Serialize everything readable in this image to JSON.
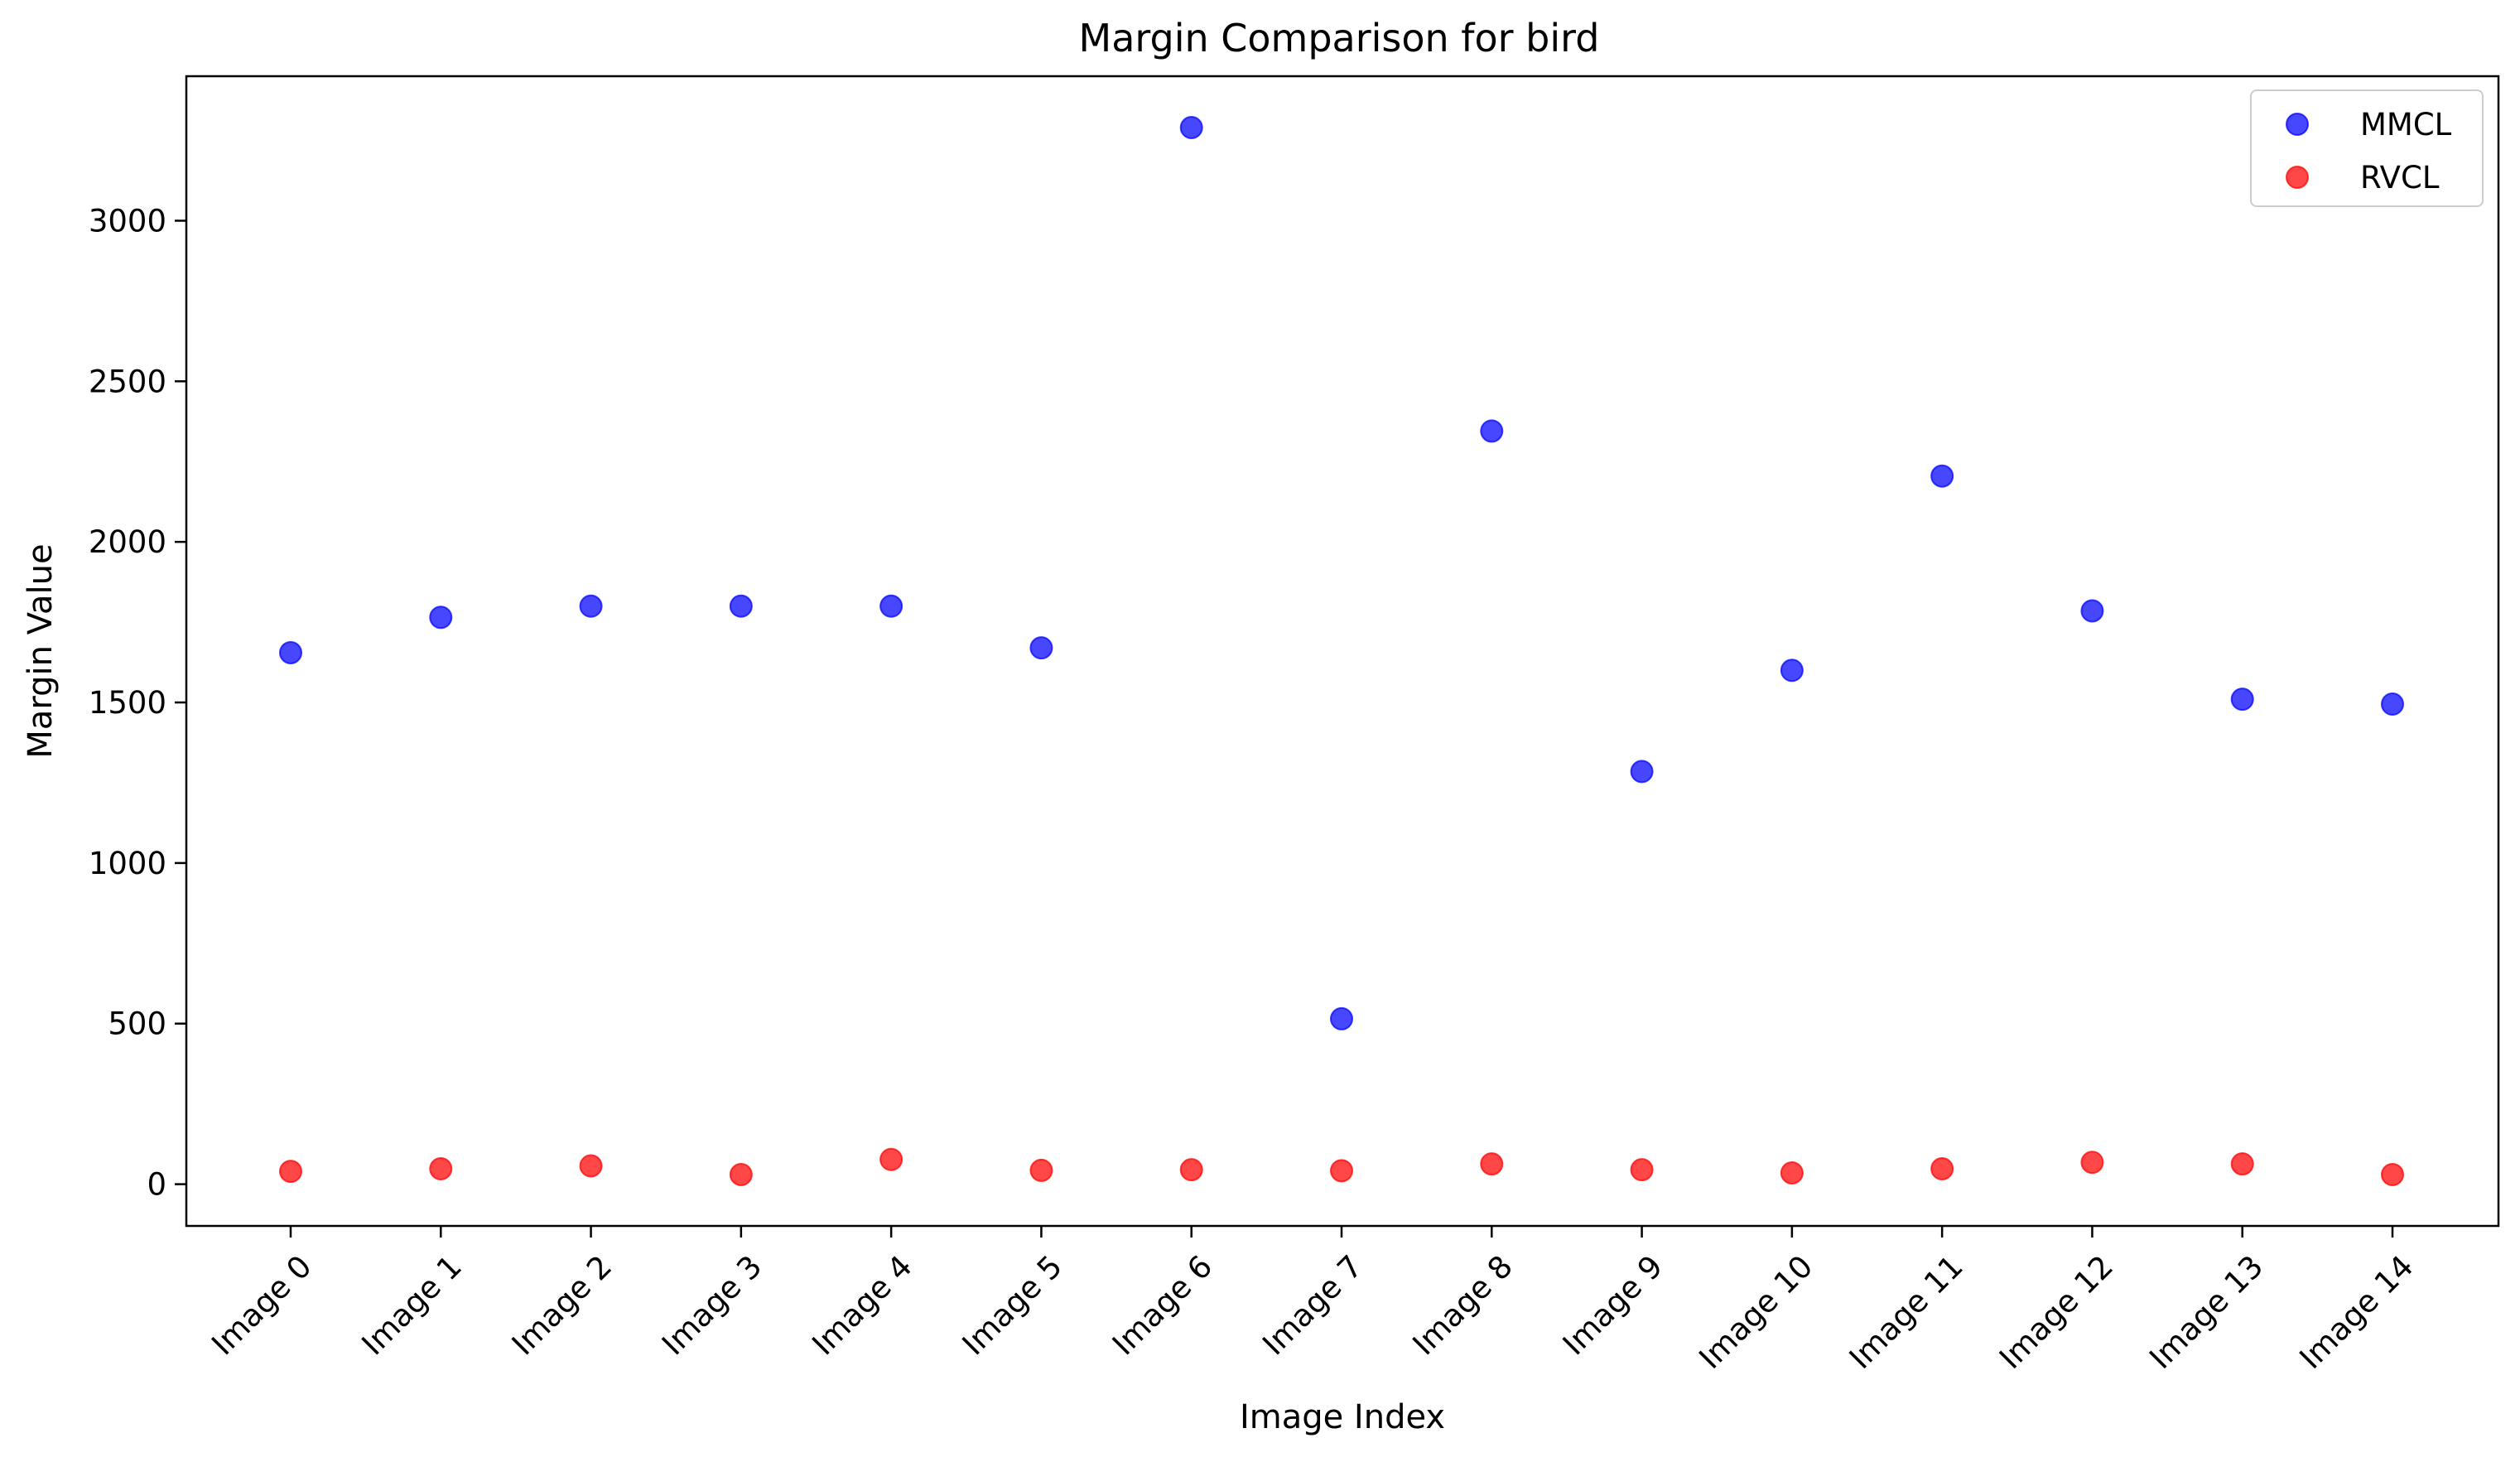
{
  "chart_data": {
    "type": "scatter",
    "title": "Margin Comparison for bird",
    "xlabel": "Image Index",
    "ylabel": "Margin Value",
    "categories": [
      "Image 0",
      "Image 1",
      "Image 2",
      "Image 3",
      "Image 4",
      "Image 5",
      "Image 6",
      "Image 7",
      "Image 8",
      "Image 9",
      "Image 10",
      "Image 11",
      "Image 12",
      "Image 13",
      "Image 14"
    ],
    "yticks": [
      0,
      500,
      1000,
      1500,
      2000,
      2500,
      3000
    ],
    "ylim": [
      -130,
      3450
    ],
    "grid": false,
    "legend_position": "top-right",
    "series": [
      {
        "name": "MMCL",
        "color": "#0000ff",
        "values": [
          1655,
          1765,
          1800,
          1800,
          1800,
          1670,
          3290,
          515,
          2345,
          1285,
          1600,
          2205,
          1785,
          1510,
          1495
        ]
      },
      {
        "name": "RVCL",
        "color": "#ff0000",
        "values": [
          40,
          48,
          57,
          30,
          77,
          43,
          45,
          42,
          63,
          45,
          35,
          48,
          68,
          63,
          30
        ]
      }
    ]
  }
}
